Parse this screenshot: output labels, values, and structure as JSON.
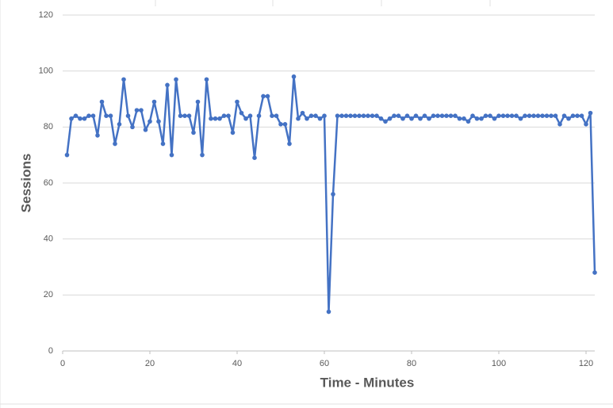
{
  "chart_data": {
    "type": "line",
    "x_label": "Time - Minutes",
    "y_label": "Sessions",
    "x": [
      1,
      2,
      3,
      4,
      5,
      6,
      7,
      8,
      9,
      10,
      11,
      12,
      13,
      14,
      15,
      16,
      17,
      18,
      19,
      20,
      21,
      22,
      23,
      24,
      25,
      26,
      27,
      28,
      29,
      30,
      31,
      32,
      33,
      34,
      35,
      36,
      37,
      38,
      39,
      40,
      41,
      42,
      43,
      44,
      45,
      46,
      47,
      48,
      49,
      50,
      51,
      52,
      53,
      54,
      55,
      56,
      57,
      58,
      59,
      60,
      61,
      62,
      63,
      64,
      65,
      66,
      67,
      68,
      69,
      70,
      71,
      72,
      73,
      74,
      75,
      76,
      77,
      78,
      79,
      80,
      81,
      82,
      83,
      84,
      85,
      86,
      87,
      88,
      89,
      90,
      91,
      92,
      93,
      94,
      95,
      96,
      97,
      98,
      99,
      100,
      101,
      102,
      103,
      104,
      105,
      106,
      107,
      108,
      109,
      110,
      111,
      112,
      113,
      114,
      115,
      116,
      117,
      118,
      119,
      120,
      121,
      122
    ],
    "series": [
      {
        "name": "Sessions",
        "color": "#4472c4",
        "values": [
          70,
          83,
          84,
          83,
          83,
          84,
          84,
          77,
          89,
          84,
          84,
          74,
          81,
          97,
          84,
          80,
          86,
          86,
          79,
          82,
          89,
          82,
          74,
          95,
          70,
          97,
          84,
          84,
          84,
          78,
          89,
          70,
          97,
          83,
          83,
          83,
          84,
          84,
          78,
          89,
          85,
          83,
          84,
          69,
          84,
          91,
          91,
          84,
          84,
          81,
          81,
          74,
          98,
          83,
          85,
          83,
          84,
          84,
          83,
          84,
          14,
          56,
          84,
          84,
          84,
          84,
          84,
          84,
          84,
          84,
          84,
          84,
          83,
          82,
          83,
          84,
          84,
          83,
          84,
          83,
          84,
          83,
          84,
          83,
          84,
          84,
          84,
          84,
          84,
          84,
          83,
          83,
          82,
          84,
          83,
          83,
          84,
          84,
          83,
          84,
          84,
          84,
          84,
          84,
          83,
          84,
          84,
          84,
          84,
          84,
          84,
          84,
          84,
          81,
          84,
          83,
          84,
          84,
          84,
          81,
          85,
          28
        ]
      }
    ],
    "xlim": [
      0,
      122
    ],
    "xticks": [
      0,
      20,
      40,
      60,
      80,
      100,
      120
    ],
    "ylim": [
      0,
      120
    ],
    "yticks": [
      0,
      20,
      40,
      60,
      80,
      100,
      120
    ],
    "grid": true
  }
}
